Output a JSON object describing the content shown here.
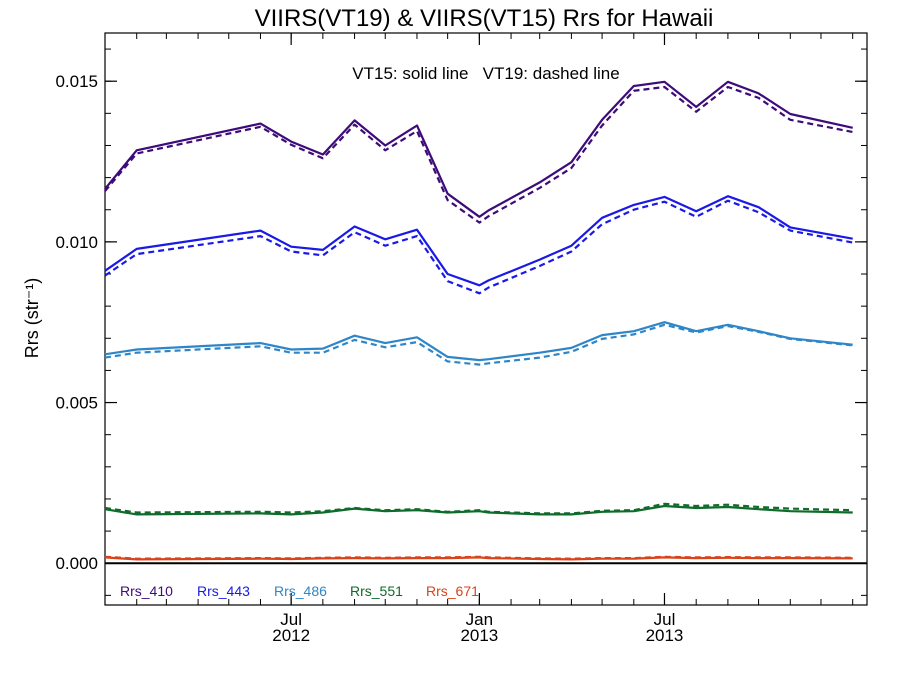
{
  "chart_data": {
    "type": "line",
    "title": "VIIRS(VT19) & VIIRS(VT15)  Rrs for Hawaii",
    "ylabel": "Rrs (str⁻¹)",
    "xlabel": "",
    "annotation": "VT15: solid line   VT19: dashed line",
    "ylim": [
      -0.0013,
      0.0165
    ],
    "xlim": [
      "2012-01-01",
      "2014-01-15"
    ],
    "yticks": [
      0.0,
      0.005,
      0.01,
      0.015
    ],
    "ytick_labels": [
      "0.000",
      "0.005",
      "0.010",
      "0.015"
    ],
    "xticks": [
      {
        "date": "2012-07-01",
        "label": "Jul",
        "year": "2012"
      },
      {
        "date": "2013-01-01",
        "label": "Jan",
        "year": "2013"
      },
      {
        "date": "2013-07-01",
        "label": "Jul",
        "year": "2013"
      }
    ],
    "line_styles": {
      "VT15": "solid",
      "VT19": "dashed"
    },
    "x": [
      "2012-01-01",
      "2012-02-01",
      "2012-06-01",
      "2012-07-01",
      "2012-08-01",
      "2012-09-01",
      "2012-10-01",
      "2012-11-01",
      "2012-12-01",
      "2013-01-01",
      "2013-01-10",
      "2013-03-01",
      "2013-04-01",
      "2013-05-01",
      "2013-06-01",
      "2013-07-01",
      "2013-08-01",
      "2013-09-01",
      "2013-10-01",
      "2013-11-01",
      "2014-01-01"
    ],
    "series": [
      {
        "name": "Rrs_410",
        "color": "#3d0b7a",
        "VT15": [
          0.01165,
          0.01285,
          0.01368,
          0.01312,
          0.01272,
          0.01378,
          0.013,
          0.01362,
          0.0115,
          0.01078,
          0.01098,
          0.01185,
          0.01248,
          0.0138,
          0.01485,
          0.01498,
          0.0142,
          0.01498,
          0.01462,
          0.01398,
          0.01355
        ],
        "VT19": [
          0.01158,
          0.01275,
          0.01358,
          0.01302,
          0.0126,
          0.01365,
          0.01285,
          0.01345,
          0.0113,
          0.0106,
          0.0108,
          0.01168,
          0.0123,
          0.01362,
          0.0147,
          0.01482,
          0.01405,
          0.01482,
          0.01448,
          0.0138,
          0.01342
        ]
      },
      {
        "name": "Rrs_443",
        "color": "#1a1ae6",
        "VT15": [
          0.0091,
          0.00978,
          0.01035,
          0.00985,
          0.00975,
          0.01048,
          0.01008,
          0.01038,
          0.009,
          0.00865,
          0.0088,
          0.00945,
          0.00988,
          0.01075,
          0.01115,
          0.0114,
          0.01095,
          0.01142,
          0.01108,
          0.01045,
          0.0101
        ],
        "VT19": [
          0.00895,
          0.00962,
          0.01018,
          0.0097,
          0.00958,
          0.0103,
          0.00988,
          0.01018,
          0.00878,
          0.0084,
          0.00858,
          0.00925,
          0.0097,
          0.01055,
          0.011,
          0.01125,
          0.01078,
          0.01128,
          0.01092,
          0.01035,
          0.00998
        ]
      },
      {
        "name": "Rrs_486",
        "color": "#2e86c8",
        "VT15": [
          0.0065,
          0.00665,
          0.00685,
          0.00665,
          0.00668,
          0.00708,
          0.00685,
          0.00703,
          0.00642,
          0.00632,
          0.00635,
          0.00655,
          0.0067,
          0.0071,
          0.00722,
          0.0075,
          0.00722,
          0.00742,
          0.00722,
          0.007,
          0.0068
        ],
        "VT19": [
          0.0064,
          0.00655,
          0.00675,
          0.00655,
          0.00655,
          0.00695,
          0.00672,
          0.00688,
          0.00628,
          0.00618,
          0.00622,
          0.0064,
          0.00658,
          0.00698,
          0.00712,
          0.00742,
          0.00718,
          0.00738,
          0.0072,
          0.00698,
          0.00678
        ]
      },
      {
        "name": "Rrs_551",
        "color": "#0e6b2a",
        "VT15": [
          0.00168,
          0.00152,
          0.00155,
          0.00152,
          0.00158,
          0.0017,
          0.00162,
          0.00165,
          0.00158,
          0.00162,
          0.00158,
          0.00152,
          0.00152,
          0.0016,
          0.00162,
          0.00178,
          0.00172,
          0.00175,
          0.00168,
          0.00162,
          0.00158
        ],
        "VT19": [
          0.00172,
          0.00158,
          0.0016,
          0.00158,
          0.00162,
          0.00172,
          0.00165,
          0.00168,
          0.0016,
          0.00165,
          0.0016,
          0.00155,
          0.00155,
          0.00163,
          0.00165,
          0.00185,
          0.00178,
          0.00182,
          0.00175,
          0.0017,
          0.00165
        ]
      },
      {
        "name": "Rrs_671",
        "color": "#d9431a",
        "VT15": [
          0.00018,
          0.00012,
          0.00014,
          0.00013,
          0.00015,
          0.00016,
          0.00015,
          0.00016,
          0.00016,
          0.00018,
          0.00016,
          0.00013,
          0.00012,
          0.00014,
          0.00014,
          0.00018,
          0.00016,
          0.00017,
          0.00016,
          0.00016,
          0.00015
        ],
        "VT19": [
          0.0002,
          0.00014,
          0.00016,
          0.00015,
          0.00017,
          0.00018,
          0.00017,
          0.00018,
          0.00018,
          0.0002,
          0.00018,
          0.00015,
          0.00014,
          0.00016,
          0.00016,
          0.0002,
          0.00018,
          0.00019,
          0.00018,
          0.00018,
          0.00017
        ]
      }
    ],
    "legend_placement": "bottom-left",
    "zero_line": true
  }
}
